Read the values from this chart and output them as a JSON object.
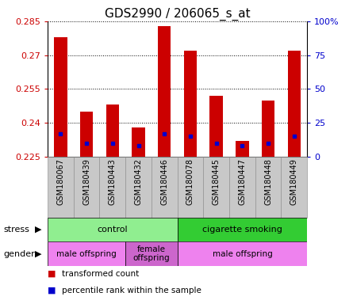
{
  "title": "GDS2990 / 206065_s_at",
  "samples": [
    "GSM180067",
    "GSM180439",
    "GSM180443",
    "GSM180432",
    "GSM180446",
    "GSM180078",
    "GSM180445",
    "GSM180447",
    "GSM180448",
    "GSM180449"
  ],
  "red_values": [
    0.278,
    0.245,
    0.248,
    0.238,
    0.283,
    0.272,
    0.252,
    0.232,
    0.25,
    0.272
  ],
  "blue_values": [
    0.235,
    0.231,
    0.231,
    0.23,
    0.235,
    0.234,
    0.231,
    0.23,
    0.231,
    0.234
  ],
  "ymin": 0.225,
  "ymax": 0.285,
  "yticks": [
    0.225,
    0.24,
    0.255,
    0.27,
    0.285
  ],
  "right_yticks": [
    0,
    25,
    50,
    75,
    100
  ],
  "stress_groups": [
    {
      "label": "control",
      "start": 0,
      "end": 5,
      "color": "#90EE90"
    },
    {
      "label": "cigarette smoking",
      "start": 5,
      "end": 10,
      "color": "#33CC33"
    }
  ],
  "gender_groups": [
    {
      "label": "male offspring",
      "start": 0,
      "end": 3,
      "color": "#EE82EE"
    },
    {
      "label": "female\noffspring",
      "start": 3,
      "end": 5,
      "color": "#CC66CC"
    },
    {
      "label": "male offspring",
      "start": 5,
      "end": 10,
      "color": "#EE82EE"
    }
  ],
  "bar_width": 0.5,
  "red_color": "#CC0000",
  "blue_color": "#0000CC",
  "tick_label_color": "#CC0000",
  "right_tick_color": "#0000CC",
  "title_fontsize": 11,
  "axis_fontsize": 8,
  "label_fontsize": 7,
  "stress_label": "stress",
  "gender_label": "gender",
  "sample_bg_color": "#C8C8C8"
}
